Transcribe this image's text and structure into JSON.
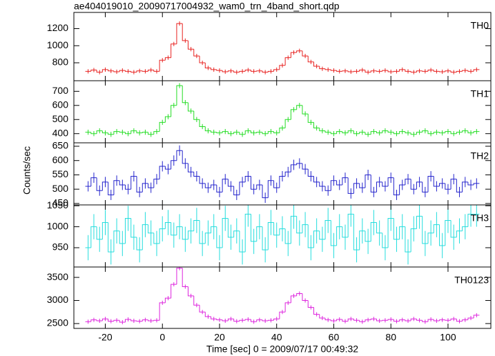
{
  "chart_data": {
    "type": "step",
    "title": "ae404019010_20090717004932_wam0_trn_4band_short.qdp",
    "ylabel": "Counts/sec",
    "xlabel": "Time [sec] 0 = 2009/07/17 00:49:32",
    "xlim": [
      -31,
      115
    ],
    "xticks": [
      -20,
      0,
      20,
      40,
      60,
      80,
      100
    ],
    "x": [
      -26,
      -24,
      -22,
      -20,
      -18,
      -16,
      -14,
      -12,
      -10,
      -8,
      -6,
      -4,
      -2,
      0,
      2,
      4,
      6,
      8,
      10,
      12,
      14,
      16,
      18,
      20,
      22,
      24,
      26,
      28,
      30,
      32,
      34,
      36,
      38,
      40,
      42,
      44,
      46,
      48,
      50,
      52,
      54,
      56,
      58,
      60,
      62,
      64,
      66,
      68,
      70,
      72,
      74,
      76,
      78,
      80,
      82,
      84,
      86,
      88,
      90,
      92,
      94,
      96,
      98,
      100,
      102,
      104,
      106,
      108,
      110
    ],
    "panels": [
      {
        "name": "TH0",
        "color": "#e8201f",
        "error": 25,
        "ylim": [
          590,
          1390
        ],
        "yticks": [
          800,
          1000,
          1200
        ],
        "values": [
          700,
          715,
          690,
          720,
          705,
          695,
          710,
          700,
          690,
          705,
          700,
          715,
          700,
          830,
          860,
          1020,
          1260,
          1060,
          960,
          880,
          800,
          740,
          720,
          710,
          695,
          705,
          690,
          700,
          715,
          700,
          705,
          690,
          700,
          720,
          770,
          860,
          920,
          940,
          880,
          810,
          760,
          730,
          720,
          710,
          700,
          705,
          695,
          700,
          715,
          690,
          705,
          700,
          710,
          695,
          700,
          720,
          700,
          690,
          705,
          700,
          715,
          700,
          695,
          705,
          690,
          700,
          710,
          700,
          720
        ]
      },
      {
        "name": "TH1",
        "color": "#22dd22",
        "error": 18,
        "ylim": [
          335,
          775
        ],
        "yticks": [
          400,
          500,
          600,
          700
        ],
        "values": [
          410,
          400,
          420,
          405,
          395,
          415,
          410,
          400,
          420,
          405,
          410,
          395,
          415,
          480,
          520,
          600,
          740,
          620,
          560,
          500,
          450,
          420,
          410,
          405,
          415,
          400,
          410,
          395,
          420,
          405,
          410,
          400,
          415,
          405,
          440,
          500,
          570,
          600,
          540,
          480,
          440,
          420,
          410,
          400,
          415,
          405,
          420,
          400,
          410,
          395,
          415,
          405,
          420,
          410,
          400,
          415,
          405,
          395,
          410,
          420,
          400,
          410,
          405,
          415,
          400,
          410,
          420,
          405,
          415
        ]
      },
      {
        "name": "TH2",
        "color": "#2222cc",
        "error": 18,
        "ylim": [
          445,
          662
        ],
        "yticks": [
          450,
          500,
          550,
          600,
          650
        ],
        "values": [
          510,
          540,
          495,
          525,
          480,
          530,
          515,
          500,
          545,
          490,
          520,
          505,
          535,
          580,
          570,
          600,
          635,
          590,
          560,
          545,
          520,
          505,
          515,
          490,
          535,
          510,
          480,
          525,
          545,
          500,
          515,
          470,
          530,
          505,
          545,
          560,
          585,
          590,
          570,
          545,
          525,
          510,
          495,
          530,
          515,
          540,
          485,
          520,
          505,
          550,
          490,
          525,
          510,
          540,
          480,
          515,
          535,
          500,
          525,
          490,
          545,
          510,
          520,
          500,
          535,
          490,
          525,
          515,
          520
        ]
      },
      {
        "name": "TH3",
        "color": "#22dddd",
        "error": 30,
        "ylim": [
          904,
          1052
        ],
        "yticks": [
          950,
          1000,
          1050
        ],
        "values": [
          950,
          1000,
          970,
          1010,
          940,
          990,
          960,
          1020,
          975,
          945,
          1005,
          985,
          960,
          995,
          1010,
          980,
          1000,
          970,
          990,
          1015,
          960,
          985,
          1000,
          950,
          1020,
          975,
          990,
          940,
          1030,
          965,
          1000,
          945,
          1010,
          980,
          995,
          960,
          1025,
          985,
          1005,
          950,
          990,
          970,
          1015,
          955,
          1000,
          975,
          1030,
          945,
          990,
          965,
          1010,
          985,
          950,
          1020,
          970,
          1000,
          940,
          995,
          1025,
          960,
          985,
          1005,
          955,
          1015,
          975,
          990,
          1000,
          1030,
          1030
        ]
      },
      {
        "name": "TH0123",
        "color": "#dd22dd",
        "error": 45,
        "ylim": [
          2395,
          3725
        ],
        "yticks": [
          2500,
          3000,
          3500
        ],
        "values": [
          2540,
          2580,
          2560,
          2600,
          2550,
          2570,
          2530,
          2590,
          2560,
          2550,
          2580,
          2560,
          2570,
          2950,
          3050,
          3350,
          3700,
          3300,
          3100,
          2900,
          2750,
          2650,
          2600,
          2580,
          2560,
          2600,
          2550,
          2570,
          2590,
          2540,
          2580,
          2560,
          2570,
          2600,
          2750,
          2950,
          3100,
          3150,
          3000,
          2850,
          2700,
          2620,
          2580,
          2560,
          2590,
          2550,
          2600,
          2570,
          2540,
          2580,
          2600,
          2560,
          2570,
          2590,
          2550,
          2580,
          2560,
          2600,
          2570,
          2540,
          2590,
          2560,
          2580,
          2570,
          2600,
          2550,
          2580,
          2620,
          2680
        ]
      }
    ]
  }
}
